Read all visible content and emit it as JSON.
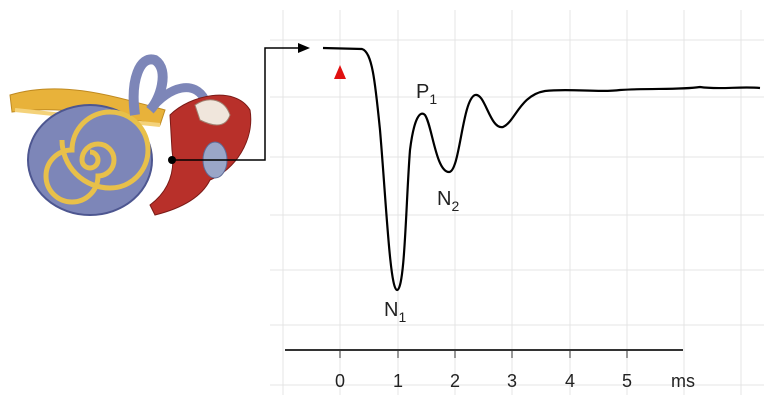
{
  "waveform_labels": [
    {
      "letter": "P",
      "index": "1"
    },
    {
      "letter": "N",
      "index": "2"
    },
    {
      "letter": "N",
      "index": "1"
    }
  ],
  "axis": {
    "ticks": [
      "0",
      "1",
      "2",
      "3",
      "4",
      "5"
    ],
    "unit": "ms"
  }
}
